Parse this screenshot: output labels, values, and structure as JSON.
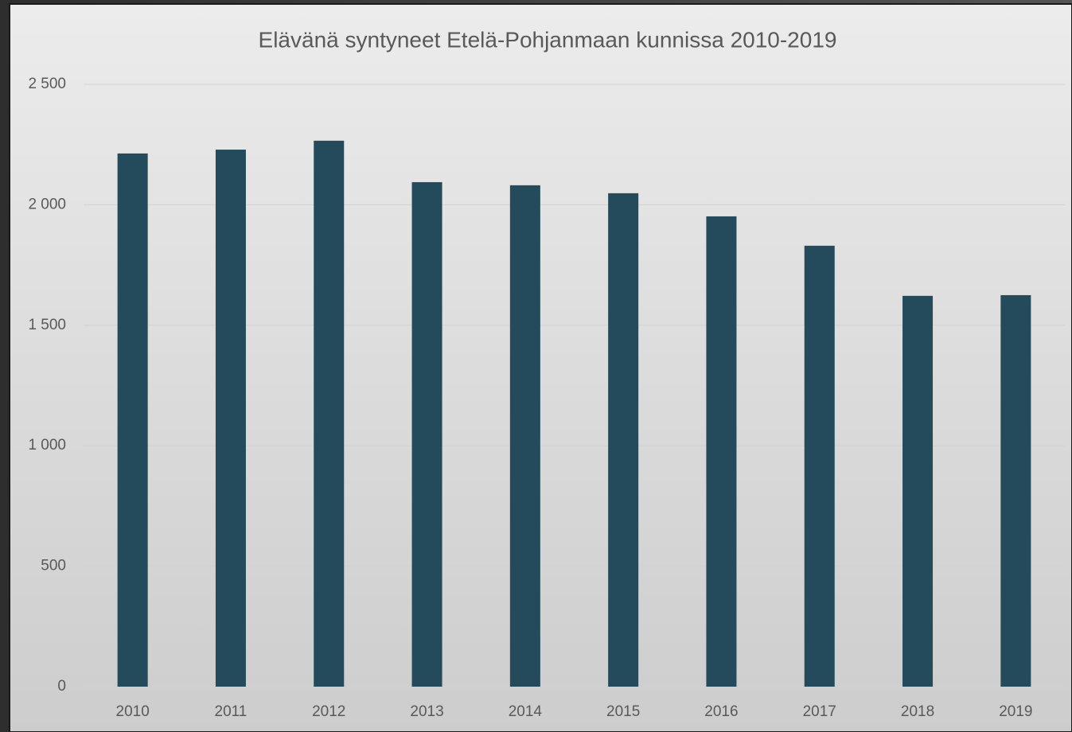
{
  "chart_data": {
    "type": "bar",
    "title": "Elävänä syntyneet Etelä-Pohjanmaan kunnissa 2010-2019",
    "categories": [
      "2010",
      "2011",
      "2012",
      "2013",
      "2014",
      "2015",
      "2016",
      "2017",
      "2018",
      "2019"
    ],
    "values": [
      2213,
      2229,
      2266,
      2094,
      2081,
      2048,
      1952,
      1830,
      1622,
      1625
    ],
    "color": "#234b5b",
    "ylim": [
      0,
      2500
    ],
    "yticks": [
      0,
      500,
      {
        "value": 1000,
        "label": "1 000"
      },
      {
        "value": 1500,
        "label": "1 500"
      },
      {
        "value": 2000,
        "label": "2 000"
      },
      {
        "value": 2500,
        "label": "2 500"
      }
    ],
    "grid": true
  }
}
